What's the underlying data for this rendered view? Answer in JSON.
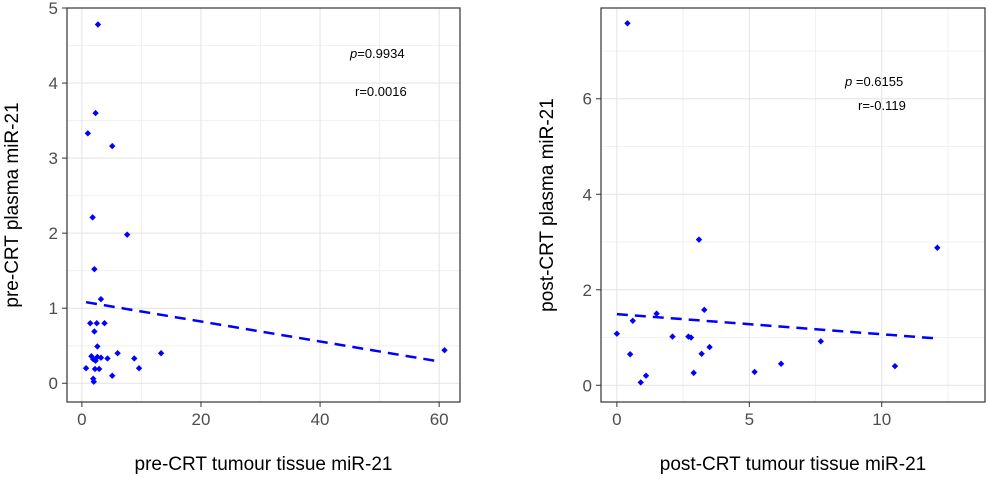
{
  "chart_data": [
    {
      "type": "scatter",
      "xlabel": "pre-CRT tumour tissue miR-21",
      "ylabel": "pre-CRT plasma miR-21",
      "xlim": [
        -2.5,
        63.5
      ],
      "ylim": [
        -0.25,
        5.0
      ],
      "xticks": [
        0,
        20,
        40,
        60
      ],
      "yticks": [
        0,
        1,
        2,
        3,
        4,
        5
      ],
      "grid": true,
      "point_color": "#0000ff",
      "points": [
        [
          2.7,
          4.78
        ],
        [
          2.3,
          3.6
        ],
        [
          1.0,
          3.33
        ],
        [
          5.1,
          3.16
        ],
        [
          1.8,
          2.21
        ],
        [
          7.6,
          1.98
        ],
        [
          2.1,
          1.52
        ],
        [
          3.2,
          1.12
        ],
        [
          1.4,
          0.8
        ],
        [
          2.5,
          0.8
        ],
        [
          3.8,
          0.8
        ],
        [
          2.1,
          0.69
        ],
        [
          2.6,
          0.49
        ],
        [
          6.0,
          0.4
        ],
        [
          13.3,
          0.4
        ],
        [
          1.6,
          0.36
        ],
        [
          2.6,
          0.35
        ],
        [
          3.2,
          0.34
        ],
        [
          1.9,
          0.32
        ],
        [
          4.3,
          0.33
        ],
        [
          8.8,
          0.33
        ],
        [
          2.3,
          0.3
        ],
        [
          0.7,
          0.2
        ],
        [
          2.2,
          0.19
        ],
        [
          2.9,
          0.19
        ],
        [
          9.6,
          0.2
        ],
        [
          5.1,
          0.1
        ],
        [
          1.9,
          0.06
        ],
        [
          2.0,
          0.02
        ],
        [
          60.9,
          0.44
        ]
      ],
      "fit": {
        "x": [
          0.7,
          60.0
        ],
        "y": [
          1.08,
          0.29
        ],
        "style": "dashed",
        "color": "#0000ff"
      },
      "annotations": {
        "p_symbol": "p",
        "p_value": "=0.9934",
        "r_text": "r=0.0016"
      }
    },
    {
      "type": "scatter",
      "xlabel": "post-CRT tumour tissue miR-21",
      "ylabel": "post-CRT plasma miR-21",
      "xlim": [
        -0.6,
        13.9
      ],
      "ylim": [
        -0.35,
        7.9
      ],
      "xticks": [
        0,
        5,
        10
      ],
      "yticks": [
        0,
        2,
        4,
        6
      ],
      "grid": true,
      "point_color": "#0000ff",
      "points": [
        [
          0.4,
          7.58
        ],
        [
          3.1,
          3.05
        ],
        [
          12.1,
          2.88
        ],
        [
          3.3,
          1.58
        ],
        [
          1.5,
          1.5
        ],
        [
          0.6,
          1.35
        ],
        [
          0.0,
          1.08
        ],
        [
          2.1,
          1.02
        ],
        [
          2.7,
          1.02
        ],
        [
          2.8,
          1.0
        ],
        [
          7.7,
          0.92
        ],
        [
          3.5,
          0.8
        ],
        [
          3.2,
          0.66
        ],
        [
          0.5,
          0.65
        ],
        [
          6.2,
          0.45
        ],
        [
          10.5,
          0.4
        ],
        [
          2.9,
          0.26
        ],
        [
          5.2,
          0.28
        ],
        [
          1.1,
          0.2
        ],
        [
          0.9,
          0.06
        ]
      ],
      "fit": {
        "x": [
          0.0,
          12.1
        ],
        "y": [
          1.49,
          0.98
        ],
        "style": "dashed",
        "color": "#0000ff"
      },
      "annotations": {
        "p_symbol": "p",
        "p_value": " =0.6155",
        "r_text": "r=-0.119"
      }
    }
  ]
}
